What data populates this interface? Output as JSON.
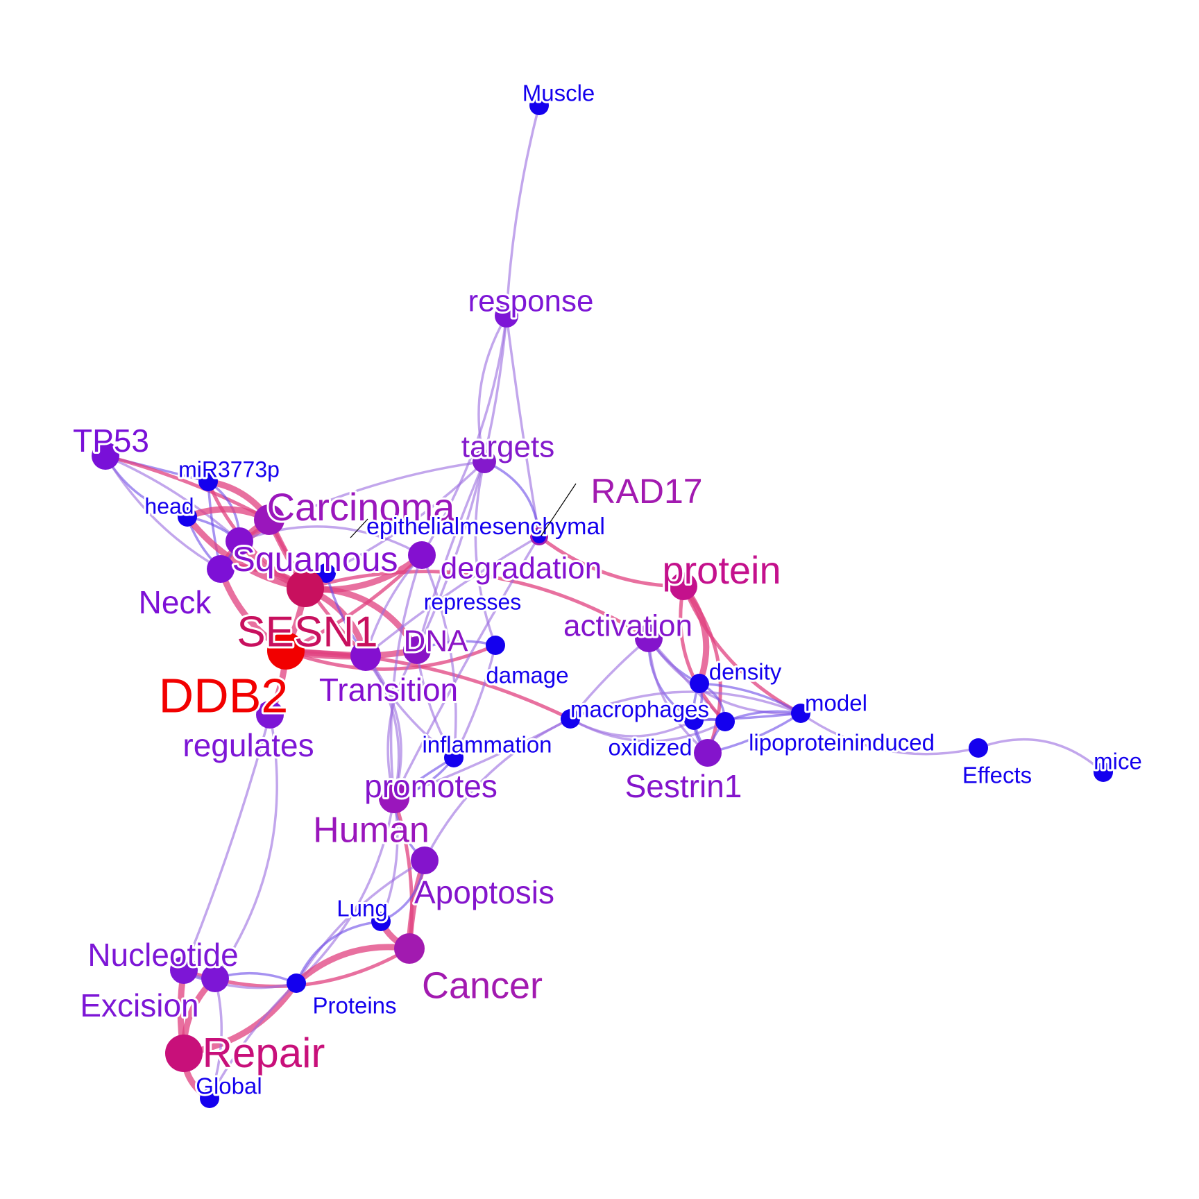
{
  "nodes": [
    {
      "id": "Muscle",
      "label": "Muscle",
      "color": "#1400ee"
    },
    {
      "id": "response",
      "label": "response",
      "color": "#7d16d6"
    },
    {
      "id": "targets",
      "label": "targets",
      "color": "#8419cc"
    },
    {
      "id": "TP53",
      "label": "TP53",
      "color": "#7910d8"
    },
    {
      "id": "miR3773p",
      "label": "miR3773p",
      "color": "#1400ee"
    },
    {
      "id": "head",
      "label": "head",
      "color": "#1400ee"
    },
    {
      "id": "Carcinoma",
      "label": "Carcinoma",
      "color": "#9a16bc"
    },
    {
      "id": "RAD17",
      "label": "RAD17",
      "color": "#a21ab0"
    },
    {
      "id": "epithelialmesenchymal",
      "label": "epithelialmesenchymal",
      "color": "#1400ee"
    },
    {
      "id": "Squamous",
      "label": "Squamous",
      "color": "#8410d0"
    },
    {
      "id": "degradation",
      "label": "degradation",
      "color": "#8410d0"
    },
    {
      "id": "protein",
      "label": "protein",
      "color": "#c4118c"
    },
    {
      "id": "Neck",
      "label": "Neck",
      "color": "#7d10d6"
    },
    {
      "id": "represses",
      "label": "represses",
      "color": "#1400ee"
    },
    {
      "id": "activation",
      "label": "activation",
      "color": "#8414cc"
    },
    {
      "id": "SESN1",
      "label": "SESN1",
      "color": "#c8105e"
    },
    {
      "id": "DNA",
      "label": "DNA",
      "color": "#8a14c6"
    },
    {
      "id": "damage",
      "label": "damage",
      "color": "#1400ee"
    },
    {
      "id": "density",
      "label": "density",
      "color": "#1400ee"
    },
    {
      "id": "DDB2",
      "label": "DDB2",
      "color": "#f20000"
    },
    {
      "id": "Transition",
      "label": "Transition",
      "color": "#8410d0"
    },
    {
      "id": "model",
      "label": "model",
      "color": "#1400ee"
    },
    {
      "id": "macrophages",
      "label": "macrophages",
      "color": "#1400ee"
    },
    {
      "id": "regulates",
      "label": "regulates",
      "color": "#7d16d6"
    },
    {
      "id": "inflammation",
      "label": "inflammation",
      "color": "#1400ee"
    },
    {
      "id": "oxidized",
      "label": "oxidized",
      "color": "#1400ee"
    },
    {
      "id": "lipoproteininduced",
      "label": "lipoproteininduced",
      "color": "#1400ee"
    },
    {
      "id": "Sestrin1",
      "label": "Sestrin1",
      "color": "#8414cc"
    },
    {
      "id": "Effects",
      "label": "Effects",
      "color": "#1400ee"
    },
    {
      "id": "mice",
      "label": "mice",
      "color": "#1400ee"
    },
    {
      "id": "promotes",
      "label": "promotes",
      "color": "#8414cc"
    },
    {
      "id": "Human",
      "label": "Human",
      "color": "#9a16bc"
    },
    {
      "id": "Apoptosis",
      "label": "Apoptosis",
      "color": "#8414cc"
    },
    {
      "id": "Lung",
      "label": "Lung",
      "color": "#1400ee"
    },
    {
      "id": "Nucleotide",
      "label": "Nucleotide",
      "color": "#7d16d6"
    },
    {
      "id": "Cancer",
      "label": "Cancer",
      "color": "#a21ab0"
    },
    {
      "id": "Excision",
      "label": "Excision",
      "color": "#7d16d6"
    },
    {
      "id": "Proteins",
      "label": "Proteins",
      "color": "#1400ee"
    },
    {
      "id": "Repair",
      "label": "Repair",
      "color": "#c8107a"
    },
    {
      "id": "Global",
      "label": "Global",
      "color": "#1400ee"
    }
  ],
  "edges": [
    [
      "Muscle",
      "response"
    ],
    [
      "response",
      "targets"
    ],
    [
      "response",
      "degradation"
    ],
    [
      "response",
      "DNA"
    ],
    [
      "response",
      "epithelialmesenchymal"
    ],
    [
      "targets",
      "epithelialmesenchymal"
    ],
    [
      "targets",
      "Squamous"
    ],
    [
      "targets",
      "DNA"
    ],
    [
      "targets",
      "damage"
    ],
    [
      "targets",
      "represses"
    ],
    [
      "TP53",
      "miR3773p"
    ],
    [
      "TP53",
      "head"
    ],
    [
      "TP53",
      "Squamous"
    ],
    [
      "TP53",
      "Carcinoma"
    ],
    [
      "TP53",
      "Neck"
    ],
    [
      "miR3773p",
      "Carcinoma"
    ],
    [
      "miR3773p",
      "SESN1"
    ],
    [
      "miR3773p",
      "Neck"
    ],
    [
      "miR3773p",
      "Squamous"
    ],
    [
      "head",
      "Squamous"
    ],
    [
      "head",
      "Neck"
    ],
    [
      "head",
      "SESN1"
    ],
    [
      "head",
      "Carcinoma"
    ],
    [
      "Carcinoma",
      "Squamous"
    ],
    [
      "Carcinoma",
      "SESN1"
    ],
    [
      "Carcinoma",
      "Neck"
    ],
    [
      "Carcinoma",
      "Transition"
    ],
    [
      "Squamous",
      "SESN1"
    ],
    [
      "Squamous",
      "Neck"
    ],
    [
      "Squamous",
      "degradation"
    ],
    [
      "Neck",
      "SESN1"
    ],
    [
      "Neck",
      "DDB2"
    ],
    [
      "SESN1",
      "DDB2"
    ],
    [
      "SESN1",
      "DNA"
    ],
    [
      "SESN1",
      "Transition"
    ],
    [
      "SESN1",
      "degradation"
    ],
    [
      "SESN1",
      "activation"
    ],
    [
      "DDB2",
      "DNA"
    ],
    [
      "DDB2",
      "damage"
    ],
    [
      "DDB2",
      "regulates"
    ],
    [
      "DDB2",
      "Transition"
    ],
    [
      "DDB2",
      "degradation"
    ],
    [
      "DDB2",
      "macrophages"
    ],
    [
      "DNA",
      "damage"
    ],
    [
      "DNA",
      "inflammation"
    ],
    [
      "DNA",
      "promotes"
    ],
    [
      "epithelialmesenchymal",
      "Transition"
    ],
    [
      "epithelialmesenchymal",
      "promotes"
    ],
    [
      "epithelialmesenchymal",
      "protein"
    ],
    [
      "degradation",
      "Transition"
    ],
    [
      "degradation",
      "inflammation"
    ],
    [
      "degradation",
      "Human"
    ],
    [
      "damage",
      "inflammation"
    ],
    [
      "represses",
      "Transition"
    ],
    [
      "Transition",
      "inflammation"
    ],
    [
      "Transition",
      "promotes"
    ],
    [
      "Transition",
      "Human"
    ],
    [
      "regulates",
      "Nucleotide"
    ],
    [
      "regulates",
      "Excision"
    ],
    [
      "activation",
      "macrophages"
    ],
    [
      "activation",
      "density"
    ],
    [
      "activation",
      "model"
    ],
    [
      "activation",
      "lipoproteininduced"
    ],
    [
      "activation",
      "oxidized"
    ],
    [
      "activation",
      "Sestrin1"
    ],
    [
      "protein",
      "density"
    ],
    [
      "protein",
      "model"
    ],
    [
      "protein",
      "lipoproteininduced"
    ],
    [
      "protein",
      "Sestrin1"
    ],
    [
      "density",
      "model"
    ],
    [
      "density",
      "lipoproteininduced"
    ],
    [
      "density",
      "oxidized"
    ],
    [
      "density",
      "Sestrin1"
    ],
    [
      "model",
      "lipoproteininduced"
    ],
    [
      "model",
      "oxidized"
    ],
    [
      "model",
      "Sestrin1"
    ],
    [
      "model",
      "Effects"
    ],
    [
      "macrophages",
      "oxidized"
    ],
    [
      "macrophages",
      "lipoproteininduced"
    ],
    [
      "macrophages",
      "model"
    ],
    [
      "macrophages",
      "Human"
    ],
    [
      "macrophages",
      "Apoptosis"
    ],
    [
      "oxidized",
      "lipoproteininduced"
    ],
    [
      "oxidized",
      "Sestrin1"
    ],
    [
      "lipoproteininduced",
      "Sestrin1"
    ],
    [
      "Effects",
      "mice"
    ],
    [
      "inflammation",
      "promotes"
    ],
    [
      "inflammation",
      "Human"
    ],
    [
      "promotes",
      "Human"
    ],
    [
      "Human",
      "Apoptosis"
    ],
    [
      "Human",
      "Lung"
    ],
    [
      "Human",
      "Cancer"
    ],
    [
      "Human",
      "Proteins"
    ],
    [
      "Apoptosis",
      "Cancer"
    ],
    [
      "Apoptosis",
      "Lung"
    ],
    [
      "Apoptosis",
      "Proteins"
    ],
    [
      "Lung",
      "Cancer"
    ],
    [
      "Lung",
      "Proteins"
    ],
    [
      "Cancer",
      "Proteins"
    ],
    [
      "Cancer",
      "Nucleotide"
    ],
    [
      "Nucleotide",
      "Excision"
    ],
    [
      "Nucleotide",
      "Repair"
    ],
    [
      "Nucleotide",
      "Proteins"
    ],
    [
      "Excision",
      "Repair"
    ],
    [
      "Excision",
      "Proteins"
    ],
    [
      "Repair",
      "Global"
    ],
    [
      "Repair",
      "Proteins"
    ],
    [
      "Excision",
      "Global"
    ],
    [
      "Proteins",
      "Global"
    ]
  ]
}
